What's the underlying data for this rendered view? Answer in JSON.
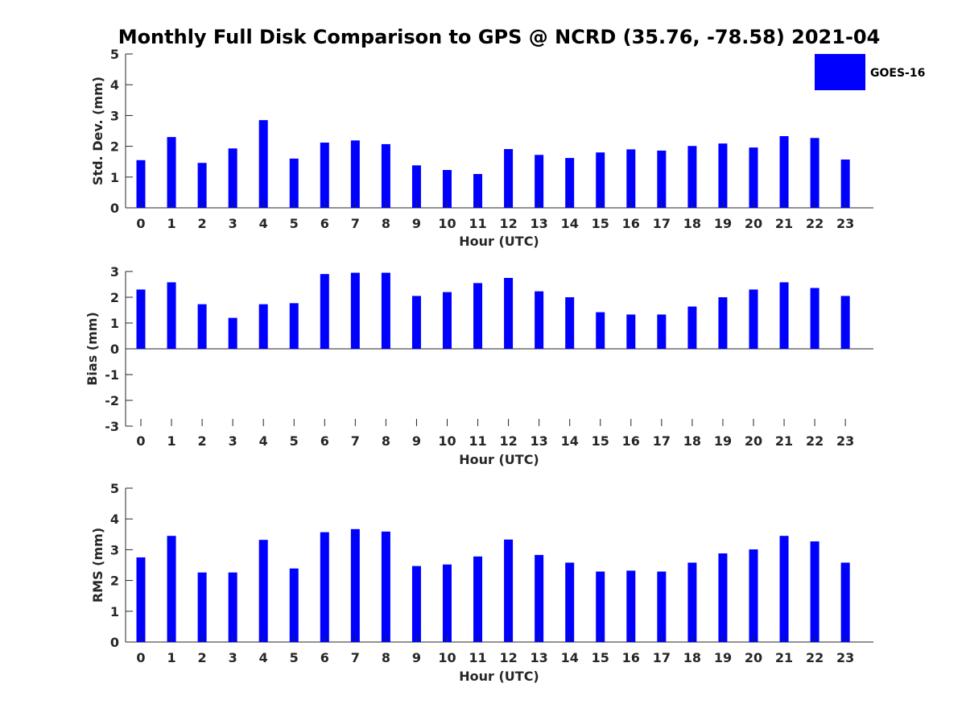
{
  "title": "Monthly Full Disk Comparison to GPS @ NCRD (35.76, -78.58) 2021-04",
  "legend": {
    "label": "GOES-16",
    "color": "#0000ff",
    "placement": "top-right"
  },
  "bar_color": "#0000ff",
  "chart_data": [
    {
      "type": "bar",
      "categories": [
        "0",
        "1",
        "2",
        "3",
        "4",
        "5",
        "6",
        "7",
        "8",
        "9",
        "10",
        "11",
        "12",
        "13",
        "14",
        "15",
        "16",
        "17",
        "18",
        "19",
        "20",
        "21",
        "22",
        "23"
      ],
      "values": [
        1.55,
        2.3,
        1.46,
        1.93,
        2.85,
        1.6,
        2.12,
        2.19,
        2.07,
        1.38,
        1.23,
        1.1,
        1.91,
        1.72,
        1.62,
        1.8,
        1.9,
        1.86,
        2.01,
        2.09,
        1.96,
        2.33,
        2.27,
        1.57
      ],
      "series": [
        {
          "name": "GOES-16"
        }
      ],
      "xlabel": "Hour (UTC)",
      "ylabel": "Std. Dev. (mm)",
      "ylim": [
        0,
        5
      ],
      "yticks": [
        "0",
        "1",
        "2",
        "3",
        "4",
        "5"
      ],
      "grid": false
    },
    {
      "type": "bar",
      "categories": [
        "0",
        "1",
        "2",
        "3",
        "4",
        "5",
        "6",
        "7",
        "8",
        "9",
        "10",
        "11",
        "12",
        "13",
        "14",
        "15",
        "16",
        "17",
        "18",
        "19",
        "20",
        "21",
        "22",
        "23"
      ],
      "values": [
        2.3,
        2.58,
        1.73,
        1.2,
        1.73,
        1.77,
        2.9,
        2.95,
        2.95,
        2.05,
        2.2,
        2.55,
        2.75,
        2.23,
        2.0,
        1.42,
        1.33,
        1.33,
        1.64,
        2.0,
        2.3,
        2.58,
        2.36,
        2.05
      ],
      "series": [
        {
          "name": "GOES-16"
        }
      ],
      "xlabel": "Hour (UTC)",
      "ylabel": "Bias (mm)",
      "ylim": [
        -3,
        3
      ],
      "yticks": [
        "-3",
        "-2",
        "-1",
        "0",
        "1",
        "2",
        "3"
      ],
      "grid": false
    },
    {
      "type": "bar",
      "categories": [
        "0",
        "1",
        "2",
        "3",
        "4",
        "5",
        "6",
        "7",
        "8",
        "9",
        "10",
        "11",
        "12",
        "13",
        "14",
        "15",
        "16",
        "17",
        "18",
        "19",
        "20",
        "21",
        "22",
        "23"
      ],
      "values": [
        2.75,
        3.45,
        2.26,
        2.26,
        3.32,
        2.39,
        3.57,
        3.67,
        3.59,
        2.47,
        2.52,
        2.78,
        3.33,
        2.83,
        2.58,
        2.29,
        2.32,
        2.29,
        2.58,
        2.88,
        3.01,
        3.45,
        3.27,
        2.58
      ],
      "series": [
        {
          "name": "GOES-16"
        }
      ],
      "xlabel": "Hour (UTC)",
      "ylabel": "RMS (mm)",
      "ylim": [
        0,
        5
      ],
      "yticks": [
        "0",
        "1",
        "2",
        "3",
        "4",
        "5"
      ],
      "grid": false
    }
  ]
}
